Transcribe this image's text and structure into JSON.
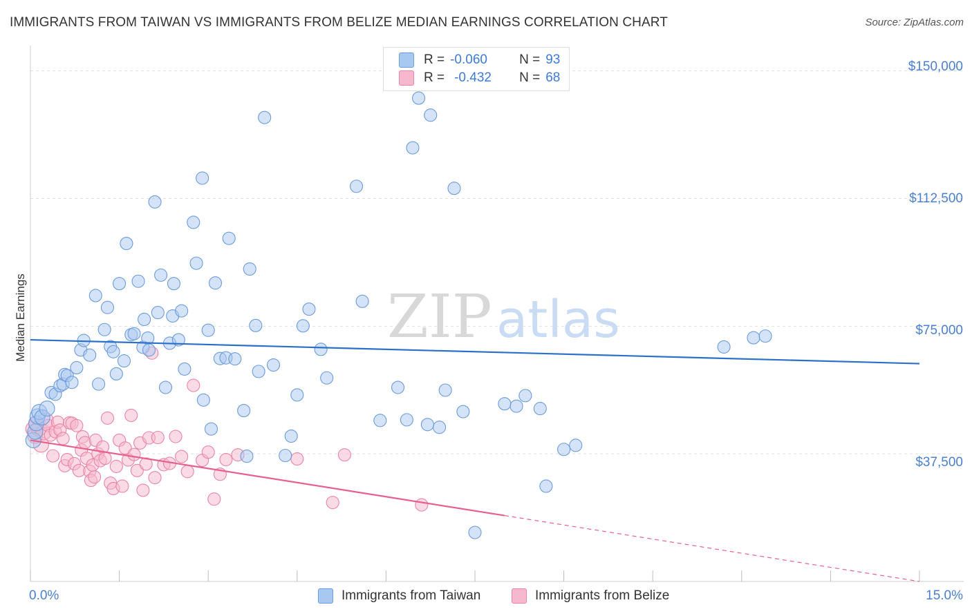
{
  "title": "IMMIGRANTS FROM TAIWAN VS IMMIGRANTS FROM BELIZE MEDIAN EARNINGS CORRELATION CHART",
  "source": "Source: ZipAtlas.com",
  "colors": {
    "taiwan_fill": "#a9c8f0",
    "taiwan_stroke": "#6a9bdc",
    "taiwan_line": "#2a6fc9",
    "belize_fill": "#f6b8cc",
    "belize_stroke": "#e984a6",
    "belize_line": "#e5608e",
    "axis_text": "#4a7fd0",
    "grid": "#dddddd"
  },
  "legend_top": {
    "taiwan": {
      "r_label": "R =",
      "r_value": "-0.060",
      "n_label": "N =",
      "n_value": "93"
    },
    "belize": {
      "r_label": "R =",
      "r_value": "-0.432",
      "n_label": "N =",
      "n_value": "68"
    }
  },
  "legend_bottom": {
    "taiwan": "Immigrants from Taiwan",
    "belize": "Immigrants from Belize"
  },
  "watermark": {
    "zip": "ZIP",
    "atlas": "atlas"
  },
  "chart_data": {
    "type": "scatter",
    "title": "IMMIGRANTS FROM TAIWAN VS IMMIGRANTS FROM BELIZE MEDIAN EARNINGS CORRELATION CHART",
    "xlabel": "",
    "ylabel": "Median Earnings",
    "xlim": [
      0,
      15
    ],
    "ylim": [
      0,
      155000
    ],
    "x_tick_labels": [
      "0.0%",
      "15.0%"
    ],
    "y_ticks": [
      37500,
      75000,
      112500,
      150000
    ],
    "y_tick_labels": [
      "$37,500",
      "$75,000",
      "$112,500",
      "$150,000"
    ],
    "series": [
      {
        "name": "Immigrants from Taiwan",
        "R": -0.06,
        "N": 93,
        "trend": {
          "x": [
            0,
            15
          ],
          "y": [
            71000,
            64000
          ],
          "dashed_from": null
        },
        "points": [
          [
            0.05,
            41500
          ],
          [
            0.08,
            44000
          ],
          [
            0.1,
            46500
          ],
          [
            0.12,
            48500
          ],
          [
            0.15,
            49800
          ],
          [
            0.2,
            48200
          ],
          [
            0.28,
            50800
          ],
          [
            0.35,
            55500
          ],
          [
            0.42,
            55000
          ],
          [
            0.5,
            57500
          ],
          [
            0.55,
            58000
          ],
          [
            0.58,
            60800
          ],
          [
            0.62,
            60500
          ],
          [
            0.7,
            58500
          ],
          [
            0.78,
            62800
          ],
          [
            0.85,
            68000
          ],
          [
            0.9,
            70800
          ],
          [
            1.0,
            66500
          ],
          [
            1.1,
            84000
          ],
          [
            1.15,
            58000
          ],
          [
            1.25,
            74000
          ],
          [
            1.3,
            80500
          ],
          [
            1.35,
            69000
          ],
          [
            1.4,
            67500
          ],
          [
            1.45,
            61000
          ],
          [
            1.5,
            87500
          ],
          [
            1.58,
            64800
          ],
          [
            1.62,
            99300
          ],
          [
            1.7,
            72500
          ],
          [
            1.75,
            72800
          ],
          [
            1.82,
            88200
          ],
          [
            1.9,
            68800
          ],
          [
            1.92,
            77000
          ],
          [
            1.98,
            71500
          ],
          [
            2.0,
            68000
          ],
          [
            2.1,
            111500
          ],
          [
            2.15,
            79000
          ],
          [
            2.2,
            90000
          ],
          [
            2.28,
            57000
          ],
          [
            2.35,
            70000
          ],
          [
            2.4,
            78000
          ],
          [
            2.42,
            87500
          ],
          [
            2.5,
            71000
          ],
          [
            2.55,
            79500
          ],
          [
            2.6,
            62400
          ],
          [
            2.75,
            105500
          ],
          [
            2.8,
            93500
          ],
          [
            2.9,
            118500
          ],
          [
            2.92,
            53300
          ],
          [
            3.0,
            73800
          ],
          [
            3.05,
            44800
          ],
          [
            3.12,
            87700
          ],
          [
            3.2,
            65500
          ],
          [
            3.3,
            65700
          ],
          [
            3.35,
            100800
          ],
          [
            3.45,
            65400
          ],
          [
            3.6,
            50200
          ],
          [
            3.65,
            36800
          ],
          [
            3.7,
            91800
          ],
          [
            3.8,
            75200
          ],
          [
            3.85,
            61700
          ],
          [
            3.95,
            136300
          ],
          [
            4.1,
            63600
          ],
          [
            4.3,
            37000
          ],
          [
            4.4,
            42700
          ],
          [
            4.5,
            54800
          ],
          [
            4.6,
            75100
          ],
          [
            4.7,
            80000
          ],
          [
            4.9,
            68200
          ],
          [
            5.0,
            59800
          ],
          [
            5.5,
            116100
          ],
          [
            5.6,
            82300
          ],
          [
            5.9,
            47300
          ],
          [
            6.2,
            57000
          ],
          [
            6.35,
            47500
          ],
          [
            6.45,
            127400
          ],
          [
            6.55,
            142000
          ],
          [
            6.7,
            46100
          ],
          [
            6.75,
            137000
          ],
          [
            6.9,
            45300
          ],
          [
            7.0,
            56200
          ],
          [
            7.15,
            115500
          ],
          [
            7.3,
            49900
          ],
          [
            7.5,
            14400
          ],
          [
            8.0,
            52200
          ],
          [
            8.2,
            51500
          ],
          [
            8.35,
            54600
          ],
          [
            8.6,
            50800
          ],
          [
            8.7,
            28000
          ],
          [
            9.0,
            38800
          ],
          [
            9.2,
            40000
          ],
          [
            11.7,
            68900
          ],
          [
            12.2,
            71600
          ],
          [
            12.4,
            72100
          ]
        ]
      },
      {
        "name": "Immigrants from Belize",
        "R": -0.432,
        "N": 68,
        "trend": {
          "x": [
            0,
            15
          ],
          "y": [
            41500,
            0
          ],
          "dashed_from": 8.0
        },
        "points": [
          [
            0.05,
            44800
          ],
          [
            0.08,
            42800
          ],
          [
            0.1,
            46200
          ],
          [
            0.14,
            45000
          ],
          [
            0.18,
            40200
          ],
          [
            0.22,
            43800
          ],
          [
            0.26,
            47300
          ],
          [
            0.3,
            45800
          ],
          [
            0.34,
            43000
          ],
          [
            0.38,
            36900
          ],
          [
            0.42,
            44000
          ],
          [
            0.46,
            46800
          ],
          [
            0.5,
            44500
          ],
          [
            0.55,
            42000
          ],
          [
            0.58,
            34000
          ],
          [
            0.62,
            35800
          ],
          [
            0.66,
            46600
          ],
          [
            0.7,
            46500
          ],
          [
            0.74,
            34600
          ],
          [
            0.78,
            45800
          ],
          [
            0.82,
            32600
          ],
          [
            0.86,
            38600
          ],
          [
            0.88,
            42500
          ],
          [
            0.92,
            40800
          ],
          [
            0.95,
            36200
          ],
          [
            1.0,
            32400
          ],
          [
            1.02,
            29700
          ],
          [
            1.05,
            34200
          ],
          [
            1.08,
            30700
          ],
          [
            1.1,
            41500
          ],
          [
            1.14,
            37500
          ],
          [
            1.18,
            35500
          ],
          [
            1.22,
            39500
          ],
          [
            1.26,
            36200
          ],
          [
            1.3,
            48000
          ],
          [
            1.35,
            28900
          ],
          [
            1.4,
            27300
          ],
          [
            1.45,
            33800
          ],
          [
            1.5,
            41500
          ],
          [
            1.55,
            28000
          ],
          [
            1.6,
            39200
          ],
          [
            1.65,
            35700
          ],
          [
            1.7,
            48800
          ],
          [
            1.75,
            37300
          ],
          [
            1.8,
            32600
          ],
          [
            1.85,
            40700
          ],
          [
            1.9,
            26800
          ],
          [
            1.95,
            34500
          ],
          [
            2.0,
            42200
          ],
          [
            2.05,
            67100
          ],
          [
            2.1,
            30500
          ],
          [
            2.15,
            42300
          ],
          [
            2.25,
            34300
          ],
          [
            2.35,
            34700
          ],
          [
            2.45,
            42600
          ],
          [
            2.55,
            36700
          ],
          [
            2.65,
            32300
          ],
          [
            2.75,
            57600
          ],
          [
            2.9,
            35600
          ],
          [
            3.0,
            38000
          ],
          [
            3.1,
            24200
          ],
          [
            3.2,
            31500
          ],
          [
            3.3,
            35800
          ],
          [
            3.5,
            37200
          ],
          [
            4.5,
            36000
          ],
          [
            5.1,
            23200
          ],
          [
            5.3,
            37200
          ],
          [
            6.6,
            22500
          ]
        ]
      }
    ]
  }
}
